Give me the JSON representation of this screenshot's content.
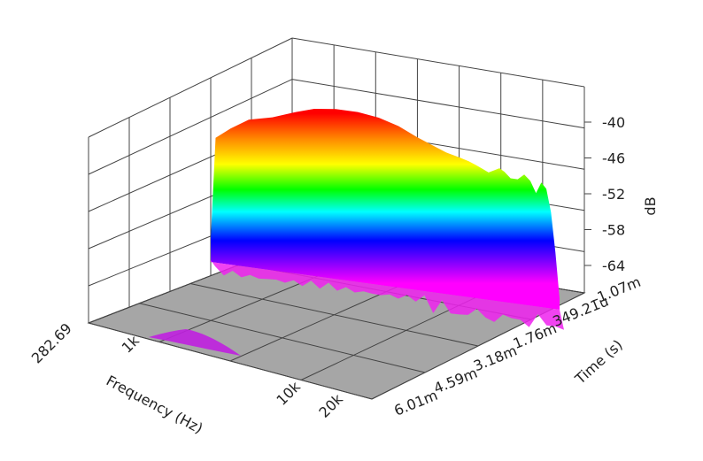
{
  "chart_data": {
    "type": "area",
    "title": "",
    "xlabel": "Frequency (Hz)",
    "ylabel": "Time (s)",
    "zlabel": "dB",
    "x_scale": "log",
    "x_ticks": [
      "282.69",
      "1k",
      "10k",
      "20k"
    ],
    "y_ticks": [
      "-1.07m",
      "349.21u",
      "1.76m",
      "3.18m",
      "4.59m",
      "6.01m"
    ],
    "z_ticks": [
      "-40",
      "-46",
      "-52",
      "-58",
      "-64"
    ],
    "zlim": [
      -70,
      -38
    ],
    "xlim": [
      282.69,
      20000
    ],
    "ylim_ms": [
      -1.07,
      6.01
    ],
    "grid": true,
    "colormap": [
      "#ff0000",
      "#ff8800",
      "#ffff00",
      "#00ff00",
      "#00ffff",
      "#0000ff",
      "#ff00ff"
    ],
    "floor_color": "#a6a6a6",
    "series": [
      {
        "x": [
          282.69,
          300,
          360,
          450,
          600,
          800,
          1000,
          1300,
          1700,
          2200,
          2800,
          3500,
          4200,
          5000,
          5800,
          6600,
          7200,
          7800,
          8400,
          9000,
          9600,
          10200,
          11000,
          12000,
          13000,
          14000,
          15000,
          16000,
          17000,
          18000,
          19000,
          20000
        ],
        "values": [
          -66,
          -48,
          -46,
          -44,
          -43,
          -41.5,
          -40.5,
          -40,
          -40,
          -40.5,
          -41.5,
          -43,
          -44,
          -45,
          -45.5,
          -46,
          -46.5,
          -47,
          -47.5,
          -47,
          -46.5,
          -47,
          -48,
          -48,
          -47,
          -48,
          -50,
          -48,
          -49,
          -53,
          -60,
          -68
        ]
      }
    ]
  }
}
